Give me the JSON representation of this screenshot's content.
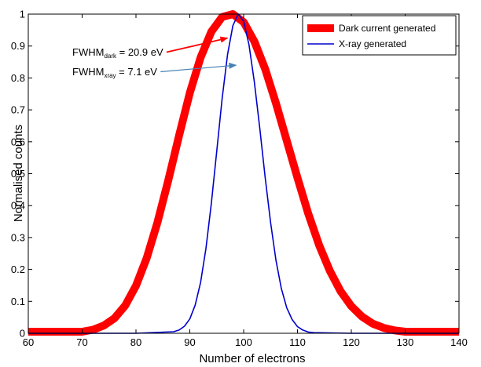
{
  "chart_data": {
    "type": "line",
    "xlabel": "Number of electrons",
    "ylabel": "Normalised counts",
    "xlim": [
      60,
      140
    ],
    "ylim": [
      0,
      1
    ],
    "xticks": [
      60,
      70,
      80,
      90,
      100,
      110,
      120,
      130,
      140
    ],
    "yticks": [
      0,
      0.1,
      0.2,
      0.3,
      0.4,
      0.5,
      0.6,
      0.7,
      0.8,
      0.9,
      1
    ],
    "grid": false,
    "legend_position": "top-right",
    "series": [
      {
        "name": "Dark current generated",
        "color": "#ff0000",
        "x": [
          60,
          65,
          70,
          72,
          74,
          76,
          78,
          80,
          82,
          84,
          86,
          88,
          90,
          92,
          94,
          96,
          98,
          100,
          102,
          104,
          106,
          108,
          110,
          112,
          114,
          116,
          118,
          120,
          122,
          124,
          126,
          128,
          130,
          135,
          140
        ],
        "y": [
          0.005,
          0.005,
          0.005,
          0.011,
          0.024,
          0.047,
          0.087,
          0.149,
          0.236,
          0.348,
          0.479,
          0.619,
          0.753,
          0.864,
          0.945,
          0.991,
          1.0,
          0.975,
          0.914,
          0.828,
          0.721,
          0.604,
          0.487,
          0.375,
          0.277,
          0.196,
          0.132,
          0.085,
          0.052,
          0.03,
          0.017,
          0.009,
          0.005,
          0.005,
          0.005
        ]
      },
      {
        "name": "X-ray generated",
        "color": "#0000cc",
        "x": [
          60,
          70,
          80,
          87,
          88,
          89,
          90,
          91,
          92,
          93,
          94,
          95,
          96,
          97,
          98,
          99,
          100,
          101,
          102,
          103,
          104,
          105,
          106,
          107,
          108,
          109,
          110,
          111,
          112,
          113,
          120,
          130,
          140
        ],
        "y": [
          0,
          0,
          0,
          0.005,
          0.01,
          0.022,
          0.045,
          0.088,
          0.159,
          0.265,
          0.407,
          0.571,
          0.735,
          0.873,
          0.964,
          1.0,
          0.978,
          0.904,
          0.786,
          0.641,
          0.488,
          0.347,
          0.229,
          0.141,
          0.08,
          0.043,
          0.021,
          0.01,
          0.004,
          0.002,
          0,
          0,
          0
        ]
      }
    ],
    "annotations": [
      {
        "main": "FWHM",
        "sub": "dark",
        "rest": " = 20.9 eV",
        "color": "#ff0000",
        "arrow_to": [
          97,
          0.925
        ]
      },
      {
        "main": "FWHM",
        "sub": "xray",
        "rest": " = 7.1 eV",
        "color": "#4682b4",
        "arrow_to": [
          98.6,
          0.84
        ]
      }
    ]
  }
}
